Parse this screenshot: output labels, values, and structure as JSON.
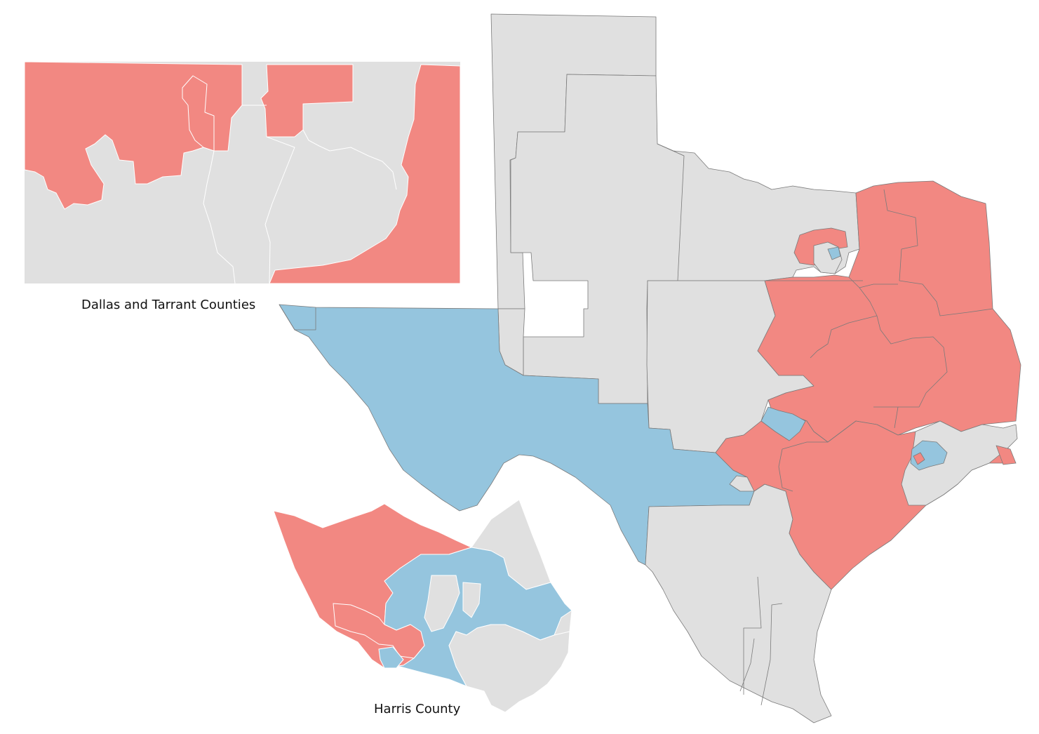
{
  "colors": {
    "republican": "#f28882",
    "democratic": "#95c5de",
    "neutral": "#e0e0e0",
    "district_border": "#7a7a7a",
    "inset_border": "#ffffff"
  },
  "insets": {
    "dallas_tarrant": {
      "caption": "Dallas and Tarrant Counties"
    },
    "harris": {
      "caption": "Harris County"
    }
  }
}
